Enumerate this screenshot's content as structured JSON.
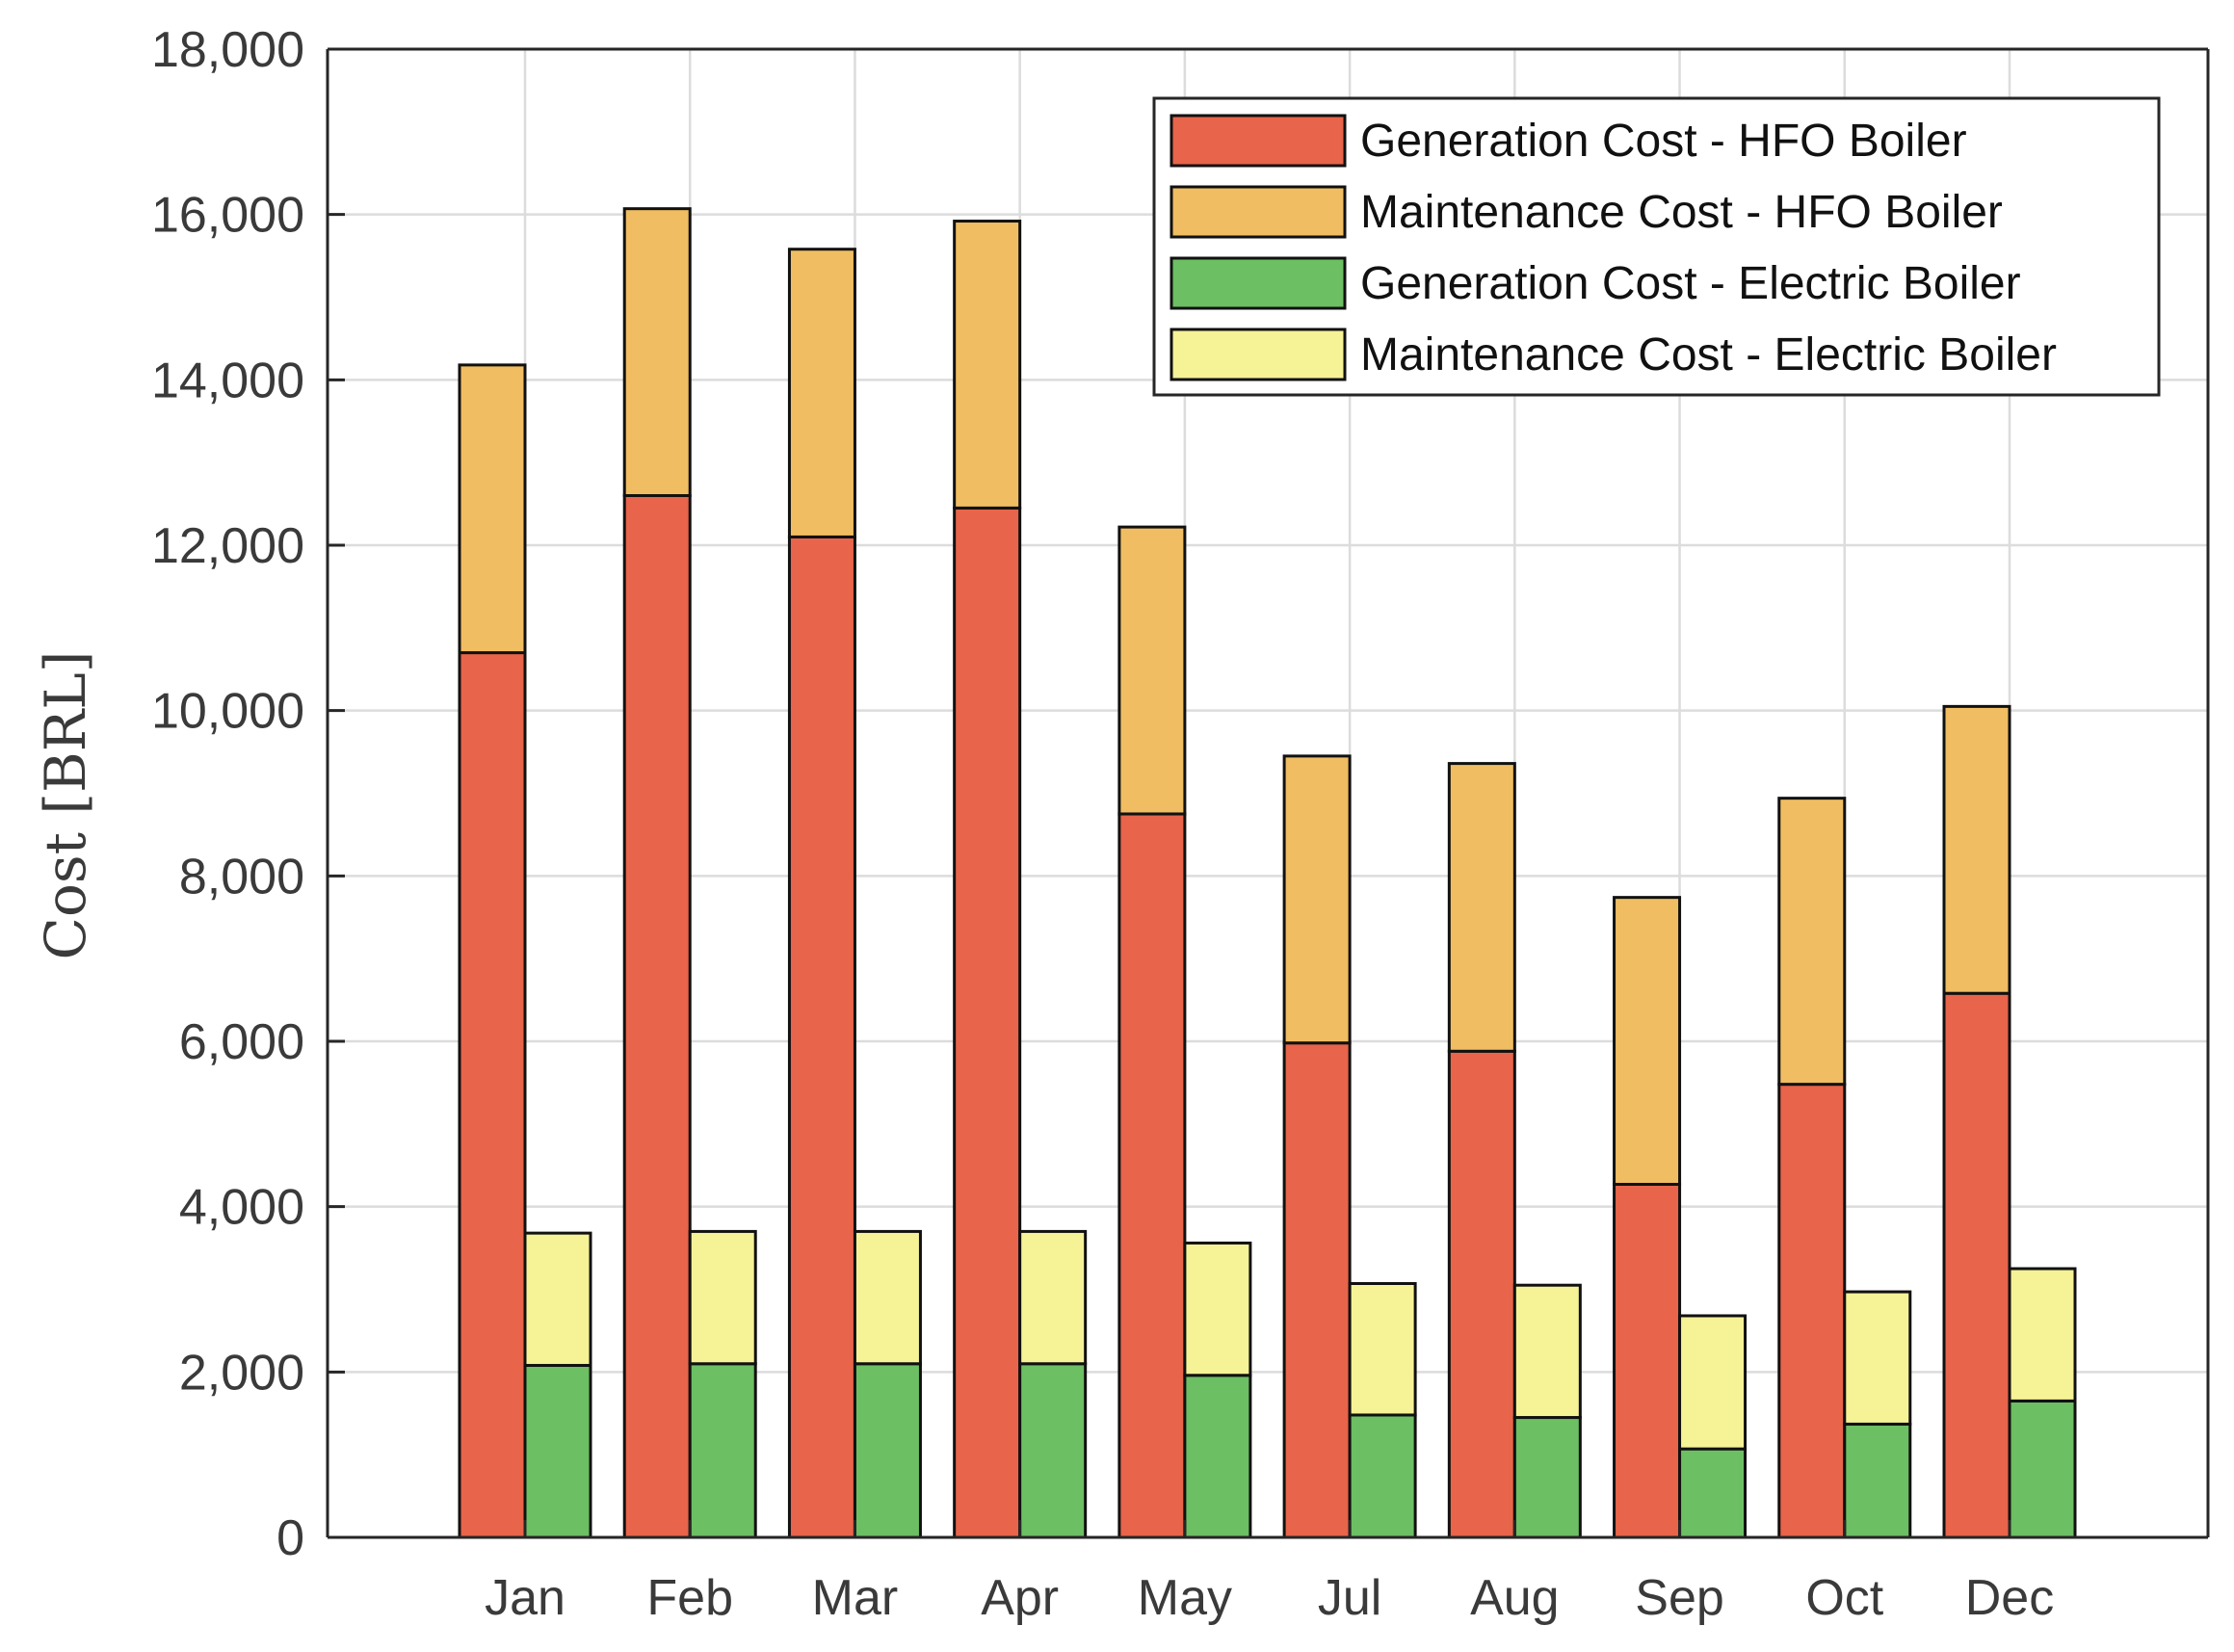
{
  "chart_data": {
    "type": "bar",
    "stacked": true,
    "grouped": true,
    "title": "",
    "xlabel": "",
    "ylabel": "Cost [BRL]",
    "ylim": [
      0,
      18000
    ],
    "yticks": [
      0,
      2000,
      4000,
      6000,
      8000,
      10000,
      12000,
      14000,
      16000,
      18000
    ],
    "ytick_labels": [
      "0",
      "2,000",
      "4,000",
      "6,000",
      "8,000",
      "10,000",
      "12,000",
      "14,000",
      "16,000",
      "18,000"
    ],
    "grid": true,
    "legend_position": "top-right",
    "categories": [
      "Jan",
      "Feb",
      "Mar",
      "Apr",
      "May",
      "Jul",
      "Aug",
      "Sep",
      "Oct",
      "Dec"
    ],
    "groups": [
      {
        "name": "HFO Boiler",
        "series": [
          {
            "name": "Generation Cost - HFO Boiler",
            "color": "#E8644A",
            "values": [
              10700,
              12600,
              12100,
              12450,
              8750,
              5980,
              5880,
              4270,
              5480,
              6580
            ]
          },
          {
            "name": "Maintenance Cost - HFO Boiler",
            "color": "#F0BD62",
            "values": [
              3480,
              3470,
              3480,
              3470,
              3470,
              3470,
              3480,
              3470,
              3460,
              3470
            ]
          }
        ]
      },
      {
        "name": "Electric Boiler",
        "series": [
          {
            "name": "Generation Cost - Electric Boiler",
            "color": "#6CBF62",
            "values": [
              2080,
              2100,
              2100,
              2100,
              1960,
              1480,
              1450,
              1070,
              1370,
              1650
            ]
          },
          {
            "name": "Maintenance Cost - Electric Boiler",
            "color": "#F6F296",
            "values": [
              1600,
              1600,
              1600,
              1600,
              1600,
              1590,
              1600,
              1610,
              1600,
              1600
            ]
          }
        ]
      }
    ]
  },
  "colors": {
    "axis": "#262626",
    "grid": "#dcdcdc",
    "text": "#3a3a3a"
  }
}
